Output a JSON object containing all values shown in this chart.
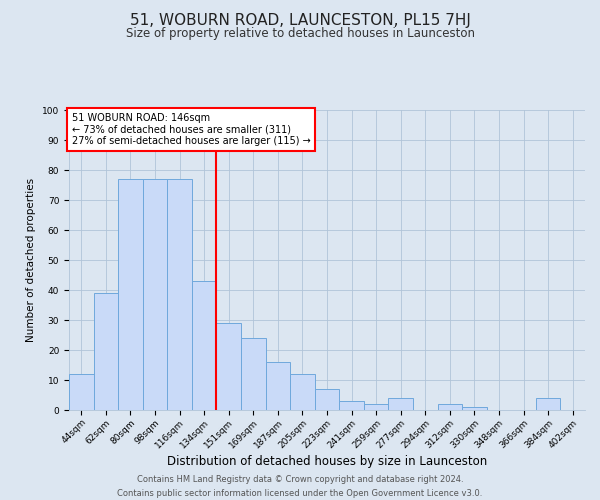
{
  "title": "51, WOBURN ROAD, LAUNCESTON, PL15 7HJ",
  "subtitle": "Size of property relative to detached houses in Launceston",
  "xlabel": "Distribution of detached houses by size in Launceston",
  "ylabel": "Number of detached properties",
  "bar_labels": [
    "44sqm",
    "62sqm",
    "80sqm",
    "98sqm",
    "116sqm",
    "134sqm",
    "151sqm",
    "169sqm",
    "187sqm",
    "205sqm",
    "223sqm",
    "241sqm",
    "259sqm",
    "277sqm",
    "294sqm",
    "312sqm",
    "330sqm",
    "348sqm",
    "366sqm",
    "384sqm",
    "402sqm"
  ],
  "bar_values": [
    12,
    39,
    77,
    77,
    77,
    43,
    29,
    24,
    16,
    12,
    7,
    3,
    2,
    4,
    0,
    2,
    1,
    0,
    0,
    4,
    0
  ],
  "bar_color": "#c9daf8",
  "bar_edge_color": "#6fa8dc",
  "vline_x_idx": 6,
  "vline_color": "red",
  "annotation_lines": [
    "51 WOBURN ROAD: 146sqm",
    "← 73% of detached houses are smaller (311)",
    "27% of semi-detached houses are larger (115) →"
  ],
  "annotation_box_color": "#ffffff",
  "annotation_box_edge_color": "red",
  "ylim": [
    0,
    100
  ],
  "yticks": [
    0,
    10,
    20,
    30,
    40,
    50,
    60,
    70,
    80,
    90,
    100
  ],
  "grid_color": "#b0c4d8",
  "bg_color": "#dce6f1",
  "footer_line1": "Contains HM Land Registry data © Crown copyright and database right 2024.",
  "footer_line2": "Contains public sector information licensed under the Open Government Licence v3.0.",
  "title_fontsize": 11,
  "subtitle_fontsize": 8.5,
  "xlabel_fontsize": 8.5,
  "ylabel_fontsize": 7.5,
  "tick_fontsize": 6.5,
  "annotation_fontsize": 7,
  "footer_fontsize": 6
}
